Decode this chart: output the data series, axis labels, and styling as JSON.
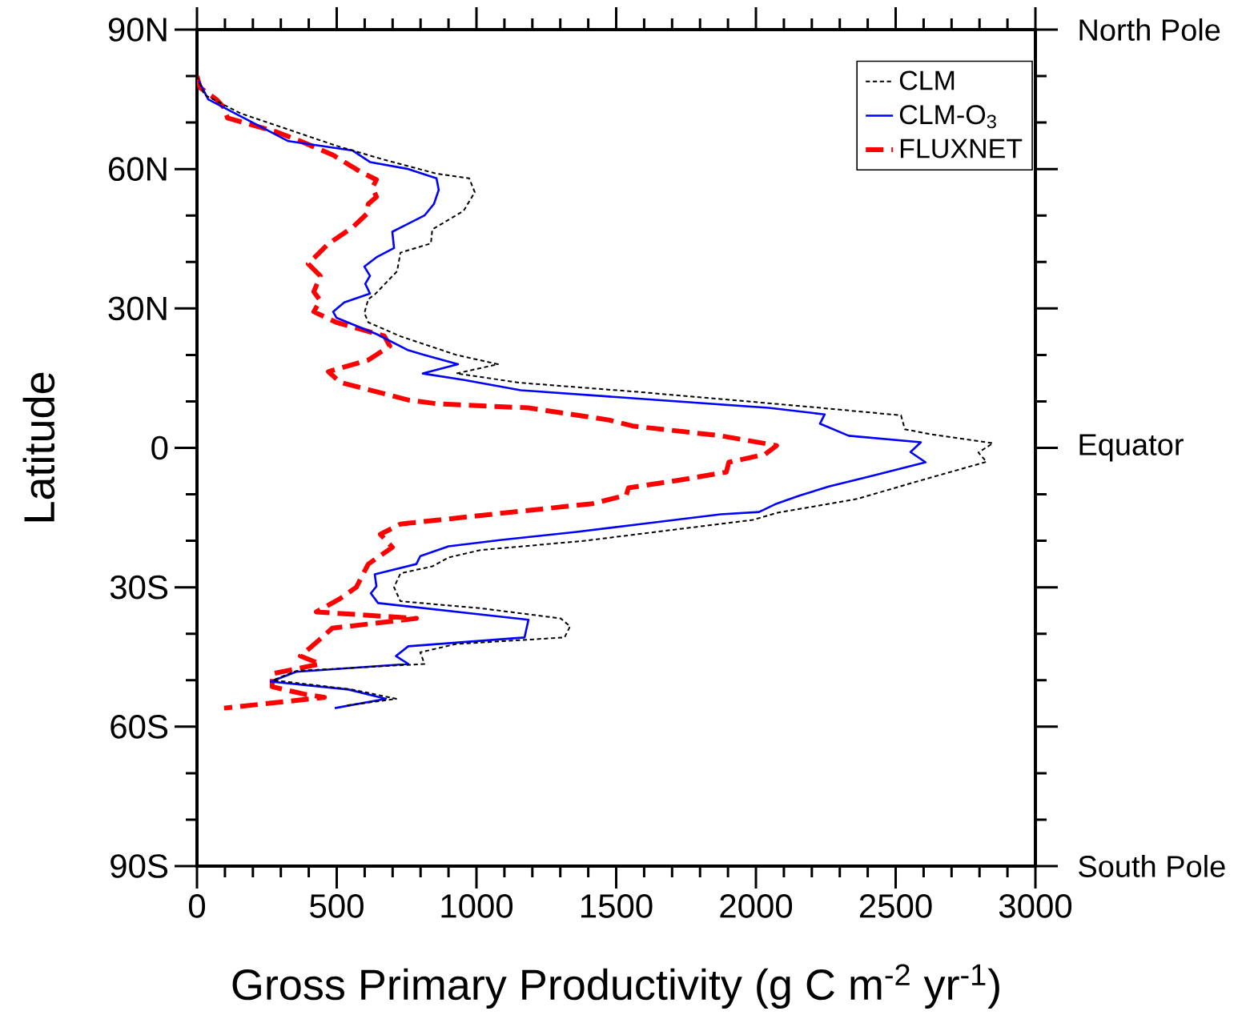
{
  "chart_data": {
    "type": "line",
    "xlabel": "Gross Primary Productivity (g C m$^{-2}$ yr$^{-1}$)",
    "ylabel": "Latitude",
    "xlim": [
      0,
      3000
    ],
    "ylim": [
      -90,
      90
    ],
    "xticks": [
      0,
      500,
      1000,
      1500,
      2000,
      2500,
      3000
    ],
    "yticks": [
      {
        "value": 90,
        "label": "90N"
      },
      {
        "value": 60,
        "label": "60N"
      },
      {
        "value": 30,
        "label": "30N"
      },
      {
        "value": 0,
        "label": "0"
      },
      {
        "value": -30,
        "label": "30S"
      },
      {
        "value": -60,
        "label": "60S"
      },
      {
        "value": -90,
        "label": "90S"
      }
    ],
    "annotations": [
      "North Pole",
      "Equator",
      "South Pole"
    ],
    "legend": "top right",
    "series": [
      {
        "name": "CLM",
        "color": "#000000",
        "line_style": "dotted",
        "x": [
          0,
          26,
          155,
          499,
          670,
          857,
          974,
          994,
          954,
          842,
          837,
          728,
          716,
          636,
          613,
          599,
          613,
          728,
          928,
          1077,
          928,
          1158,
          1587,
          2160,
          2519,
          2533,
          2619,
          2848,
          2796,
          2825,
          2590,
          2361,
          2074,
          1989,
          1788,
          1387,
          1014,
          900,
          842,
          728,
          705,
          728,
          1014,
          1301,
          1335,
          1315,
          928,
          799,
          814,
          355,
          272,
          556,
          713,
          527
        ],
        "values": [
          80,
          76,
          72,
          65,
          62,
          59,
          58,
          55,
          51,
          47,
          44,
          42,
          38,
          33,
          32,
          29,
          27,
          24,
          20,
          18,
          16,
          14,
          12,
          9,
          7,
          4,
          3,
          1,
          -1,
          -3,
          -7,
          -11,
          -14,
          -15.5,
          -17,
          -20,
          -22,
          -23.6,
          -25.5,
          -27,
          -30,
          -33,
          -34.5,
          -36.7,
          -38.4,
          -40.8,
          -42.2,
          -44,
          -46.5,
          -48,
          -50,
          -52,
          -54,
          -55.5
        ]
      },
      {
        "name": "CLM-O$_{3}$",
        "color": "#0000ff",
        "line_style": "solid",
        "x": [
          6,
          40,
          327,
          556,
          619,
          756,
          857,
          865,
          848,
          814,
          699,
          705,
          642,
          599,
          619,
          602,
          619,
          527,
          487,
          499,
          642,
          756,
          814,
          934,
          808,
          957,
          1158,
          2046,
          2246,
          2229,
          2332,
          2590,
          2553,
          2607,
          2418,
          2261,
          2155,
          2074,
          2011,
          1874,
          1587,
          1358,
          1089,
          900,
          799,
          785,
          636,
          642,
          622,
          648,
          1186,
          1172,
          756,
          712,
          756,
          355,
          264,
          542,
          676,
          493
        ],
        "values": [
          79,
          75,
          66,
          64,
          61.5,
          60,
          58,
          55.5,
          52.5,
          50,
          46.5,
          43,
          41,
          39,
          37,
          35.3,
          33.2,
          31.3,
          29.3,
          28,
          24.5,
          21,
          20,
          18,
          16,
          14.6,
          12.4,
          8.6,
          7.2,
          5.2,
          2.6,
          1.2,
          -0.9,
          -3.1,
          -6,
          -8.3,
          -10.3,
          -12,
          -13.8,
          -14.3,
          -16.4,
          -18.1,
          -19.8,
          -21.2,
          -23.3,
          -25,
          -27.2,
          -29.8,
          -31.3,
          -33.4,
          -37,
          -40.8,
          -42.7,
          -44.8,
          -46.5,
          -48.2,
          -50.3,
          -52,
          -54,
          -56
        ]
      },
      {
        "name": "FLUXNET",
        "color": "#ff0000",
        "line_style": "dashed",
        "x": [
          0,
          11,
          69,
          97,
          109,
          284,
          370,
          487,
          585,
          642,
          628,
          642,
          613,
          607,
          556,
          470,
          398,
          441,
          418,
          441,
          418,
          499,
          670,
          690,
          613,
          470,
          513,
          756,
          857,
          1186,
          1473,
          1559,
          1874,
          2074,
          2032,
          1903,
          1894,
          1731,
          1544,
          1536,
          1415,
          1100,
          728,
          656,
          699,
          613,
          570,
          513,
          427,
          785,
          484,
          438,
          370,
          441,
          269,
          269,
          384,
          456,
          97
        ],
        "values": [
          80,
          77.5,
          75,
          73.2,
          71,
          68,
          66,
          63,
          59.4,
          57.7,
          56,
          54,
          52.5,
          50.3,
          47.4,
          43.9,
          39.6,
          37,
          33.6,
          31.7,
          29.3,
          27,
          24.1,
          21.9,
          18.9,
          16.4,
          14.1,
          10.3,
          9.5,
          8.6,
          6,
          4.7,
          2.6,
          0.5,
          -1.4,
          -3.1,
          -5.2,
          -6.9,
          -8.6,
          -10.2,
          -12,
          -14,
          -16.4,
          -18.6,
          -21.4,
          -25,
          -30,
          -32.4,
          -35.3,
          -36.7,
          -38.8,
          -41.3,
          -44.8,
          -46.5,
          -48.6,
          -51.4,
          -53,
          -53.7,
          -56
        ]
      }
    ]
  }
}
